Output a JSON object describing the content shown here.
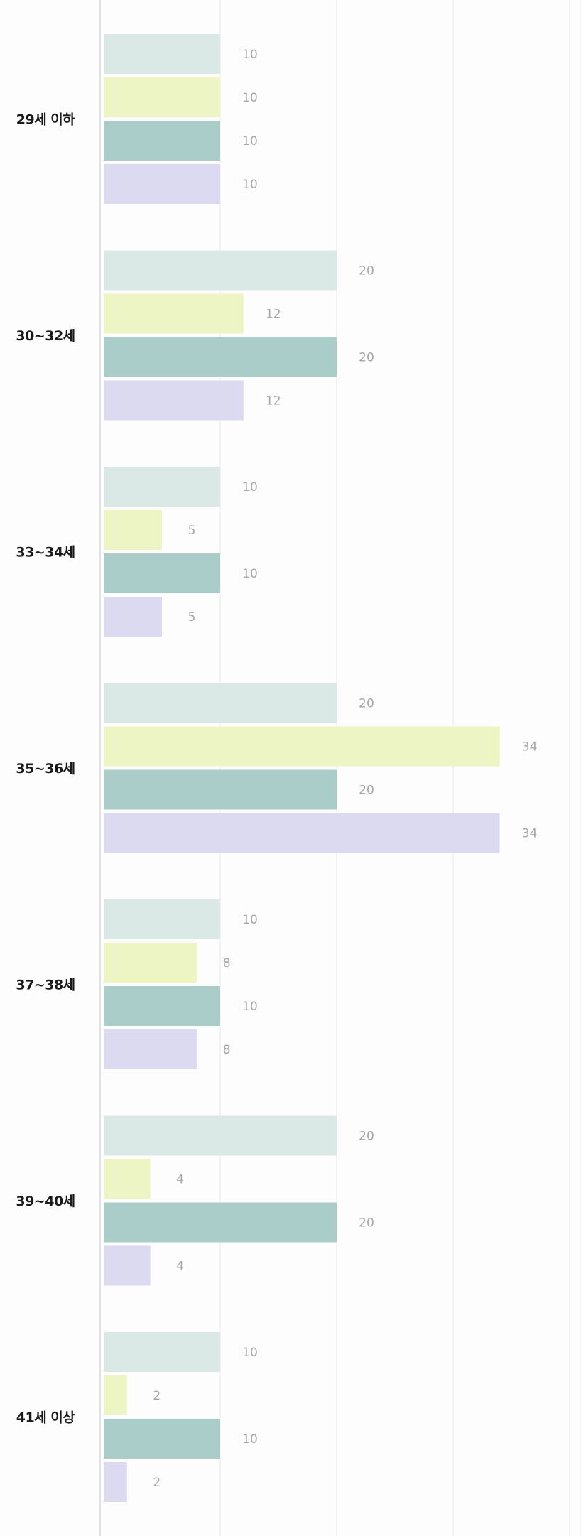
{
  "chart_data": {
    "type": "bar",
    "orientation": "horizontal",
    "categories": [
      "29세 이하",
      "30~32세",
      "33~34세",
      "35~36세",
      "37~38세",
      "39~40세",
      "41세 이상"
    ],
    "series": [
      {
        "color": "#dae9e6",
        "values": [
          10,
          20,
          10,
          20,
          10,
          20,
          10
        ]
      },
      {
        "color": "#eef5c4",
        "values": [
          10,
          12,
          5,
          34,
          8,
          4,
          2
        ]
      },
      {
        "color": "#abcdc9",
        "values": [
          10,
          20,
          10,
          20,
          10,
          20,
          10
        ]
      },
      {
        "color": "#dcdaf0",
        "values": [
          10,
          12,
          5,
          34,
          8,
          4,
          2
        ]
      }
    ],
    "xlim": [
      0,
      41
    ],
    "grid": true,
    "gridline_step": 10,
    "data_labels": true,
    "legend": "none",
    "axis_line_color": "#c8c8c8",
    "grid_color": "#ececec",
    "label_color": "#a6a6a6",
    "category_label_color": "#1a1a1a"
  }
}
